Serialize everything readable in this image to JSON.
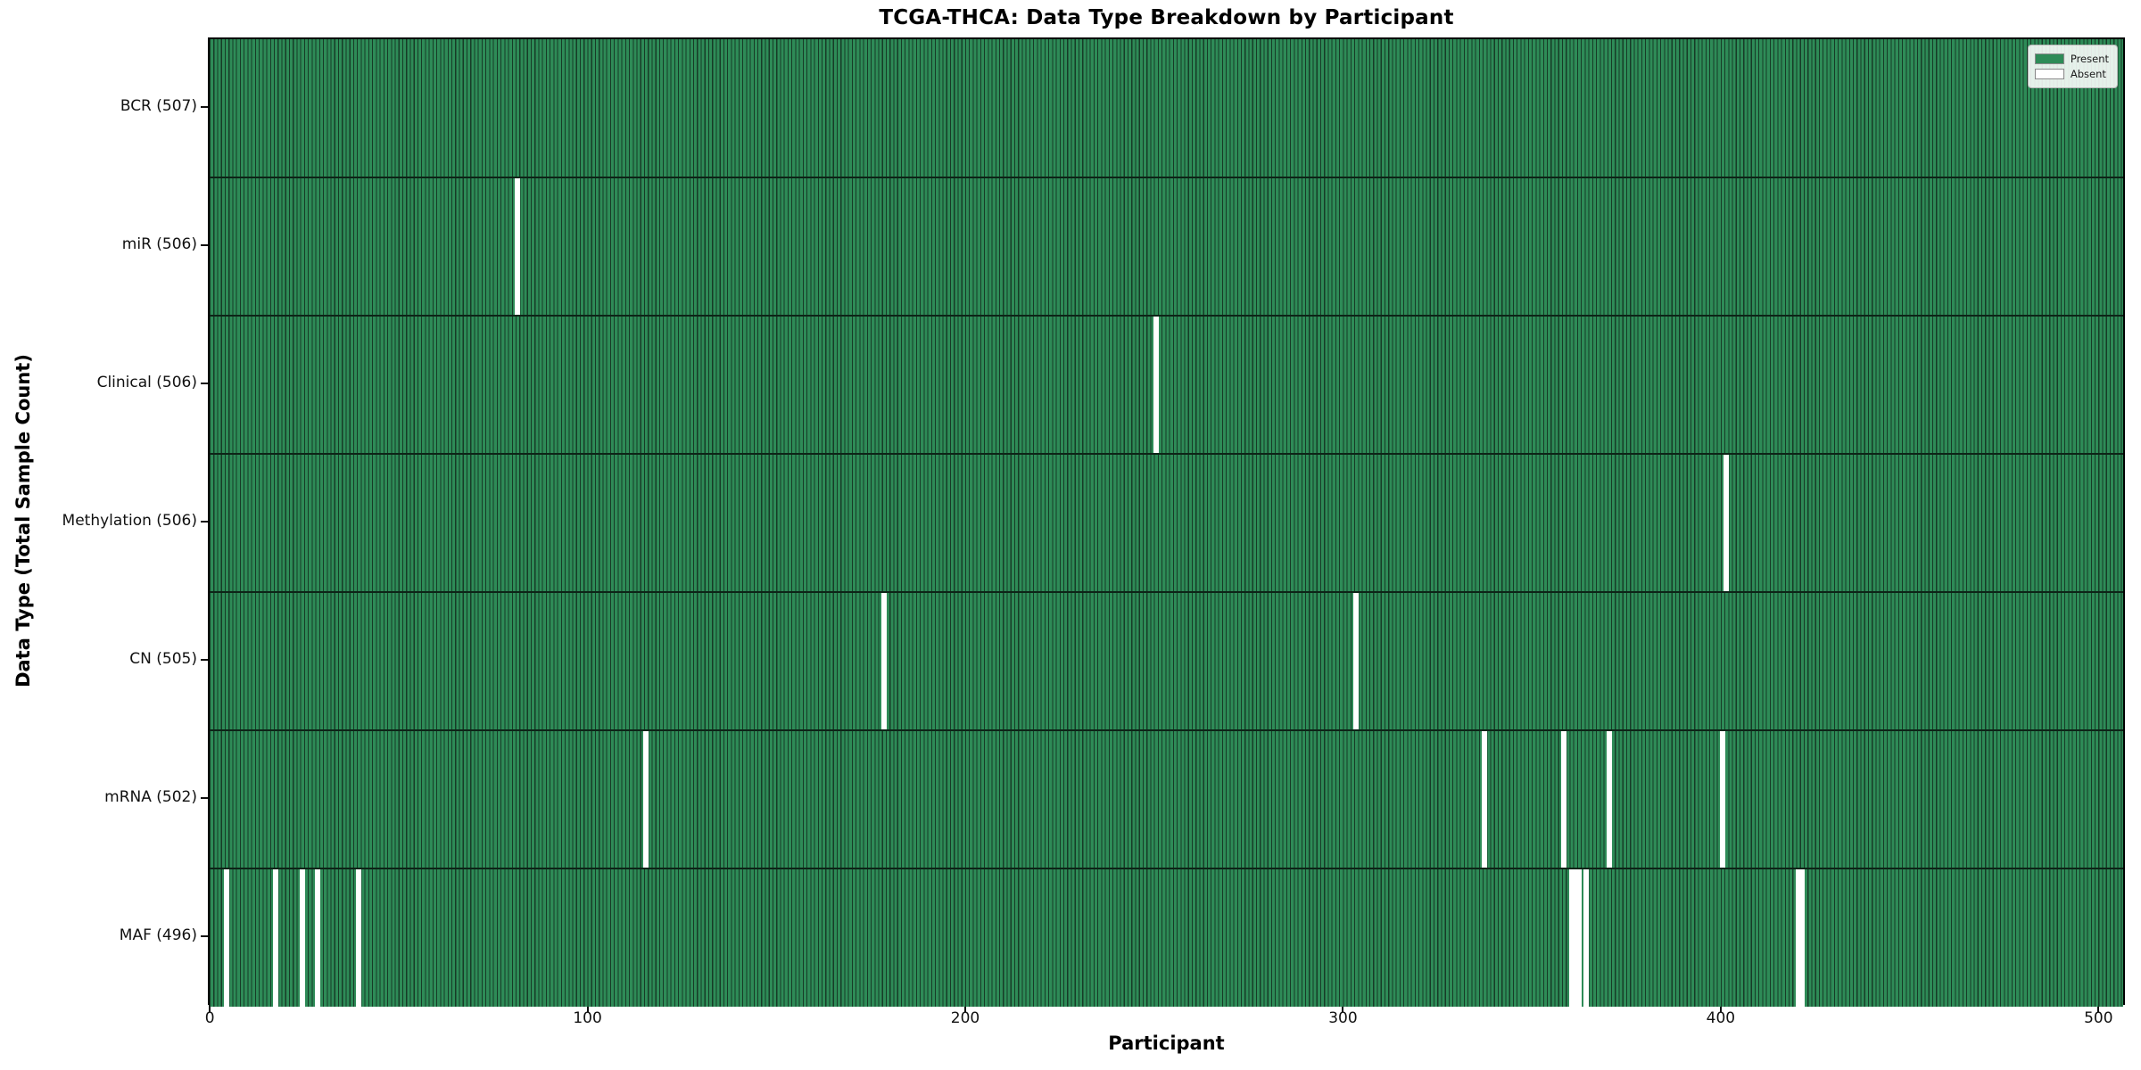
{
  "title": "TCGA-THCA: Data Type Breakdown by Participant",
  "axes": {
    "xlabel": "Participant",
    "ylabel": "Data Type (Total Sample Count)"
  },
  "legend": {
    "items": [
      {
        "label": "Present",
        "color": "#2E8B57"
      },
      {
        "label": "Absent",
        "color": "#FFFFFF"
      }
    ]
  },
  "chart_data": {
    "type": "heatmap",
    "title": "TCGA-THCA: Data Type Breakdown by Participant",
    "xlabel": "Participant",
    "ylabel": "Data Type (Total Sample Count)",
    "n_participants": 507,
    "xlim": [
      -0.5,
      507
    ],
    "x_ticks": [
      "0",
      "100",
      "200",
      "300",
      "400",
      "500"
    ],
    "x_tick_values": [
      0,
      100,
      200,
      300,
      400,
      500
    ],
    "legend_position": "upper right",
    "grid": false,
    "rows": [
      {
        "label": "BCR (507)",
        "total": 507,
        "absent_participants": []
      },
      {
        "label": "miR (506)",
        "total": 506,
        "absent_participants": [
          81
        ]
      },
      {
        "label": "Clinical (506)",
        "total": 506,
        "absent_participants": [
          250
        ]
      },
      {
        "label": "Methylation (506)",
        "total": 506,
        "absent_participants": [
          401
        ]
      },
      {
        "label": "CN (505)",
        "total": 505,
        "absent_participants": [
          178,
          303
        ]
      },
      {
        "label": "mRNA (502)",
        "total": 502,
        "absent_participants": [
          115,
          337,
          358,
          370,
          400
        ]
      },
      {
        "label": "MAF (496)",
        "total": 496,
        "absent_participants": [
          4,
          17,
          24,
          28,
          39,
          360,
          361,
          362,
          364,
          420,
          421
        ]
      }
    ],
    "colors": {
      "present": "#2E8B57",
      "bar_edge": "#173b27",
      "absent": "#FFFFFF",
      "row_divider": "#0d2417",
      "frame": "#000000"
    }
  }
}
